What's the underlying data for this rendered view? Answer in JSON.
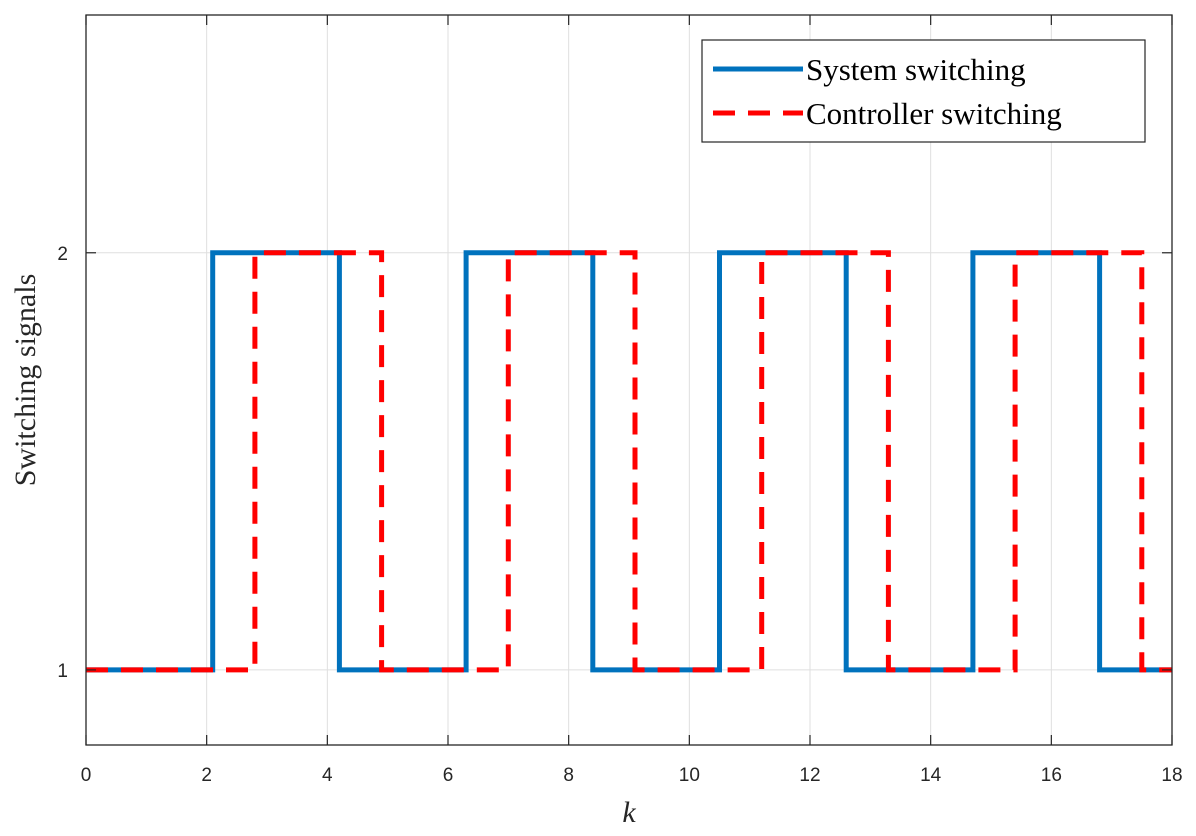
{
  "chart_data": {
    "type": "line",
    "step": true,
    "xlabel": "k",
    "ylabel": "Switching signals",
    "xlim": [
      0,
      18
    ],
    "ylim": [
      0.82,
      2.57
    ],
    "xticks": [
      "0",
      "2",
      "4",
      "6",
      "8",
      "10",
      "12",
      "14",
      "16",
      "18"
    ],
    "yticks": [
      "1",
      "2"
    ],
    "grid": true,
    "legend_position": "top-right",
    "series": [
      {
        "name": "System switching",
        "color": "#0072BD",
        "style": "solid",
        "x": [
          0,
          2.1,
          2.1,
          4.2,
          4.2,
          6.3,
          6.3,
          8.4,
          8.4,
          10.5,
          10.5,
          12.6,
          12.6,
          14.7,
          14.7,
          16.8,
          16.8,
          18
        ],
        "y": [
          1,
          1,
          2,
          2,
          1,
          1,
          2,
          2,
          1,
          1,
          2,
          2,
          1,
          1,
          2,
          2,
          1,
          1
        ]
      },
      {
        "name": "Controller switching",
        "color": "#FF0000",
        "style": "dashed",
        "x": [
          0,
          2.8,
          2.8,
          4.9,
          4.9,
          7.0,
          7.0,
          9.1,
          9.1,
          11.2,
          11.2,
          13.3,
          13.3,
          15.4,
          15.4,
          17.5,
          17.5,
          18
        ],
        "y": [
          1,
          1,
          2,
          2,
          1,
          1,
          2,
          2,
          1,
          1,
          2,
          2,
          1,
          1,
          2,
          2,
          1,
          1
        ]
      }
    ]
  }
}
